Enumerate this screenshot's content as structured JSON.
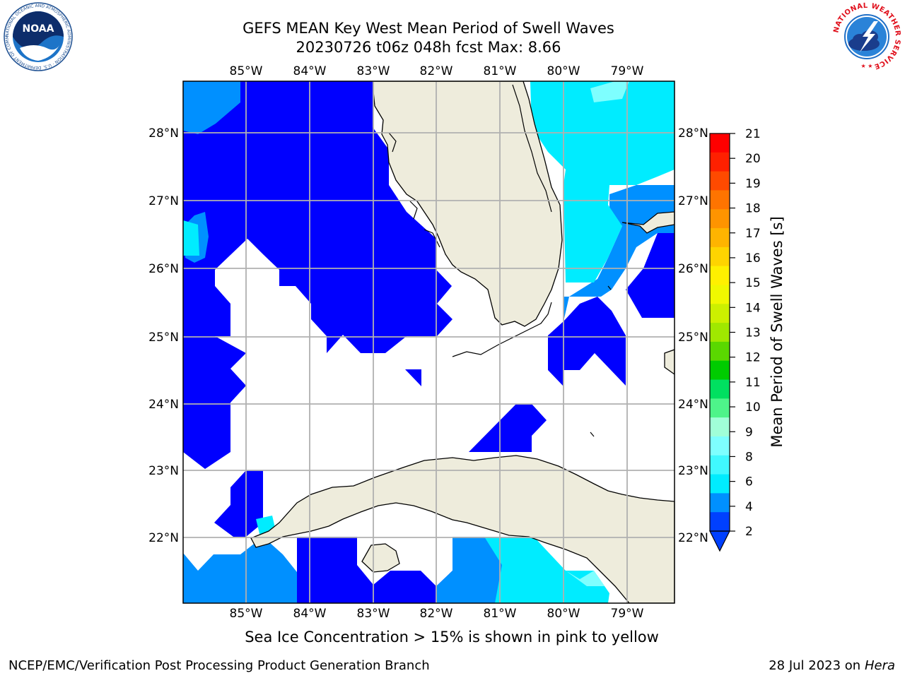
{
  "header": {
    "title_line1": "GEFS MEAN Key West Mean Period of Swell Waves",
    "title_line2": "20230726 t06z 048h fcst   Max: 8.66"
  },
  "logos": {
    "noaa_text": "NOAA",
    "noaa_ring_text": "NATIONAL OCEANIC AND ATMOSPHERIC ADMINISTRATION · U.S. DEPARTMENT OF COMMERCE",
    "nws_ring_text": "NATIONAL WEATHER SERVICE"
  },
  "map": {
    "lon_labels": [
      "85°W",
      "84°W",
      "83°W",
      "82°W",
      "81°W",
      "80°W",
      "79°W"
    ],
    "lat_labels": [
      "28°N",
      "27°N",
      "26°N",
      "25°N",
      "24°N",
      "23°N",
      "22°N"
    ],
    "land_color": "#eeecdc",
    "ocean_color": "#ffffff",
    "grid_color": "#b0b0b0"
  },
  "colorbar": {
    "label": "Mean Period of Swell Waves [s]",
    "ticks": [
      "21",
      "20",
      "19",
      "18",
      "17",
      "16",
      "15",
      "14",
      "13",
      "12",
      "11",
      "10",
      "9",
      "8",
      "6",
      "4",
      "2"
    ],
    "colors_top_to_bottom": [
      "#ff0000",
      "#ff2000",
      "#ff4a00",
      "#ff7400",
      "#ff9400",
      "#ffb400",
      "#ffd400",
      "#fff000",
      "#f0f800",
      "#ccf000",
      "#a0e800",
      "#5ad800",
      "#00cc00",
      "#00e060",
      "#4ef48a",
      "#a0ffd8",
      "#7effff",
      "#40f8ff",
      "#00ecff",
      "#0090ff",
      "#0040ff"
    ]
  },
  "caption": "Sea Ice Concentration > 15% is shown in pink to yellow",
  "footer": {
    "left": "NCEP/EMC/Verification Post Processing Product Generation Branch",
    "right_prefix": "28 Jul 2023 on ",
    "right_italic": "Hera"
  }
}
